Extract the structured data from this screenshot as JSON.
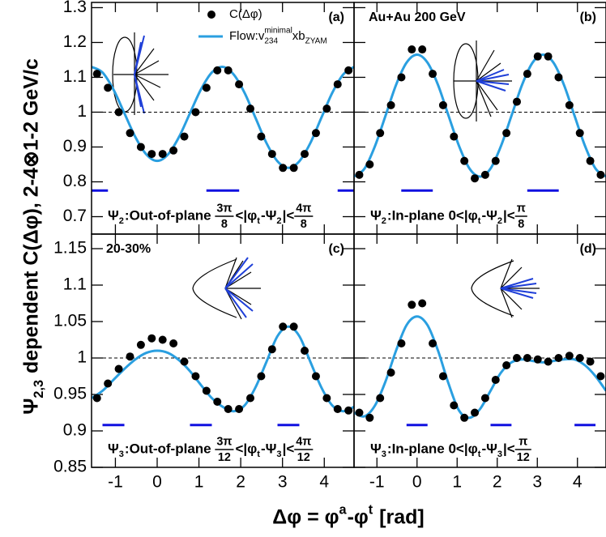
{
  "chart_data": [
    {
      "type": "line",
      "panel_label": "(a)",
      "xlim": [
        -1.5708,
        4.7124
      ],
      "ylim": [
        0.65,
        1.315
      ],
      "xticks": [
        -1,
        0,
        1,
        2,
        3,
        4
      ],
      "yticks": [
        0.7,
        0.8,
        0.9,
        1,
        1.1,
        1.2,
        1.3
      ],
      "show_x_tick_labels": false,
      "show_y_tick_labels": true,
      "ref_line": 1,
      "series": [
        {
          "name": "C(Δφ)",
          "style": "markers",
          "color": "#000000",
          "x": [
            -1.44,
            -1.18,
            -0.92,
            -0.65,
            -0.39,
            -0.13,
            0.13,
            0.39,
            0.65,
            0.92,
            1.18,
            1.44,
            1.7,
            1.96,
            2.23,
            2.49,
            2.75,
            3.01,
            3.27,
            3.53,
            3.8,
            4.06,
            4.32,
            4.58
          ],
          "values": [
            1.11,
            1.07,
            1.0,
            0.94,
            0.9,
            0.88,
            0.88,
            0.89,
            0.93,
            1.0,
            1.07,
            1.12,
            1.12,
            1.08,
            1.01,
            0.93,
            0.88,
            0.84,
            0.84,
            0.88,
            0.94,
            1.01,
            1.08,
            1.12
          ]
        },
        {
          "name": "Flow:v",
          "name_sup": "minimal",
          "name_sub": "234",
          "name_tail": "xb",
          "name_tail_sub": "ZYAM",
          "style": "curve",
          "color": "#2a9fe0",
          "x": [
            -1.571,
            -1.309,
            -1.047,
            -0.785,
            -0.524,
            -0.262,
            0,
            0.262,
            0.524,
            0.785,
            1.047,
            1.309,
            1.571,
            1.833,
            2.094,
            2.356,
            2.618,
            2.88,
            3.142,
            3.403,
            3.665,
            3.927,
            4.189,
            4.451,
            4.712
          ],
          "values": [
            1.13,
            1.114,
            1.065,
            0.997,
            0.929,
            0.879,
            0.86,
            0.879,
            0.929,
            0.997,
            1.065,
            1.114,
            1.13,
            1.108,
            1.055,
            0.983,
            0.911,
            0.859,
            0.84,
            0.859,
            0.911,
            0.983,
            1.055,
            1.108,
            1.13
          ]
        }
      ],
      "range_bars": {
        "color": "#1010e0",
        "y": 0.775,
        "segments": [
          [
            -1.571,
            -1.178
          ],
          [
            1.178,
            1.963
          ],
          [
            4.32,
            4.712
          ]
        ]
      },
      "annotation": [
        "Ψ",
        {
          "sub": "2"
        },
        ":Out-of-plane ",
        {
          "num": "3π",
          "den": "8"
        },
        "<|φ",
        {
          "sub": "t"
        },
        "-Ψ",
        {
          "sub": "2"
        },
        "|<",
        {
          "num": "4π",
          "den": "8"
        }
      ]
    },
    {
      "type": "line",
      "panel_label": "(b)",
      "corner_text": "Au+Au 200 GeV",
      "xlim": [
        -1.5708,
        4.7124
      ],
      "ylim": [
        0.65,
        1.315
      ],
      "xticks": [
        -1,
        0,
        1,
        2,
        3,
        4
      ],
      "yticks": [
        0.7,
        0.8,
        0.9,
        1,
        1.1,
        1.2,
        1.3
      ],
      "show_x_tick_labels": false,
      "show_y_tick_labels": false,
      "ref_line": 1,
      "series": [
        {
          "style": "markers",
          "color": "#000000",
          "x": [
            -1.44,
            -1.18,
            -0.92,
            -0.65,
            -0.39,
            -0.13,
            0.13,
            0.39,
            0.65,
            0.92,
            1.18,
            1.44,
            1.7,
            1.96,
            2.23,
            2.49,
            2.75,
            3.01,
            3.27,
            3.53,
            3.8,
            4.06,
            4.32,
            4.58
          ],
          "values": [
            0.82,
            0.85,
            0.94,
            1.02,
            1.1,
            1.18,
            1.18,
            1.11,
            1.02,
            0.93,
            0.86,
            0.81,
            0.82,
            0.86,
            0.94,
            1.03,
            1.11,
            1.16,
            1.16,
            1.1,
            1.02,
            0.94,
            0.86,
            0.82
          ]
        },
        {
          "style": "curve",
          "color": "#2a9fe0",
          "x": [
            -1.571,
            -1.309,
            -1.047,
            -0.785,
            -0.524,
            -0.262,
            0,
            0.262,
            0.524,
            0.785,
            1.047,
            1.309,
            1.571,
            1.833,
            2.094,
            2.356,
            2.618,
            2.88,
            3.142,
            3.403,
            3.665,
            3.927,
            4.189,
            4.451,
            4.712
          ],
          "values": [
            0.815,
            0.838,
            0.903,
            0.99,
            1.078,
            1.142,
            1.165,
            1.142,
            1.078,
            0.99,
            0.903,
            0.838,
            0.815,
            0.838,
            0.903,
            0.99,
            1.078,
            1.142,
            1.165,
            1.142,
            1.078,
            0.99,
            0.903,
            0.838,
            0.815
          ]
        }
      ],
      "range_bars": {
        "color": "#1010e0",
        "y": 0.775,
        "segments": [
          [
            -0.393,
            0.393
          ],
          [
            2.749,
            3.534
          ]
        ]
      },
      "annotation": [
        "Ψ",
        {
          "sub": "2"
        },
        ":In-plane 0<|φ",
        {
          "sub": "t"
        },
        "-Ψ",
        {
          "sub": "2"
        },
        "|<",
        {
          "num": "π",
          "den": "8"
        }
      ]
    },
    {
      "type": "line",
      "panel_label": "(c)",
      "corner_text": "20-30%",
      "xlim": [
        -1.5708,
        4.7124
      ],
      "ylim": [
        0.85,
        1.17
      ],
      "xticks": [
        -1,
        0,
        1,
        2,
        3,
        4
      ],
      "yticks": [
        0.85,
        0.9,
        0.95,
        1,
        1.05,
        1.1,
        1.15
      ],
      "show_x_tick_labels": true,
      "show_y_tick_labels": true,
      "ref_line": 1,
      "series": [
        {
          "style": "markers",
          "color": "#000000",
          "x": [
            -1.44,
            -1.18,
            -0.92,
            -0.65,
            -0.39,
            -0.13,
            0.13,
            0.39,
            0.65,
            0.92,
            1.18,
            1.44,
            1.7,
            1.96,
            2.23,
            2.49,
            2.75,
            3.01,
            3.27,
            3.53,
            3.8,
            4.06,
            4.32,
            4.58
          ],
          "values": [
            0.945,
            0.965,
            0.985,
            1.002,
            1.018,
            1.027,
            1.025,
            1.02,
            0.995,
            0.975,
            0.955,
            0.94,
            0.93,
            0.93,
            0.945,
            0.975,
            1.012,
            1.043,
            1.043,
            1.01,
            0.975,
            0.945,
            0.93,
            0.928
          ]
        },
        {
          "style": "curve",
          "color": "#2a9fe0",
          "x": [
            -1.571,
            -1.309,
            -1.047,
            -0.785,
            -0.524,
            -0.262,
            0,
            0.262,
            0.524,
            0.785,
            1.047,
            1.309,
            1.571,
            1.833,
            2.094,
            2.356,
            2.618,
            2.88,
            3.142,
            3.403,
            3.665,
            3.927,
            4.189,
            4.451,
            4.712
          ],
          "values": [
            0.945,
            0.955,
            0.97,
            0.985,
            0.998,
            1.007,
            1.01,
            1.007,
            0.997,
            0.982,
            0.963,
            0.945,
            0.933,
            0.927,
            0.935,
            0.96,
            0.995,
            1.03,
            1.043,
            1.03,
            0.995,
            0.96,
            0.935,
            0.927,
            0.933
          ]
        }
      ],
      "range_bars": {
        "color": "#1010e0",
        "y": 0.908,
        "segments": [
          [
            -1.309,
            -0.785
          ],
          [
            0.785,
            1.309
          ],
          [
            2.88,
            3.403
          ]
        ]
      },
      "annotation": [
        "Ψ",
        {
          "sub": "3"
        },
        ":Out-of-plane ",
        {
          "num": "3π",
          "den": "12"
        },
        "<|φ",
        {
          "sub": "t"
        },
        "-Ψ",
        {
          "sub": "3"
        },
        "|<",
        {
          "num": "4π",
          "den": "12"
        }
      ]
    },
    {
      "type": "line",
      "panel_label": "(d)",
      "xlim": [
        -1.5708,
        4.7124
      ],
      "ylim": [
        0.85,
        1.17
      ],
      "xticks": [
        -1,
        0,
        1,
        2,
        3,
        4
      ],
      "yticks": [
        0.85,
        0.9,
        0.95,
        1,
        1.05,
        1.1,
        1.15
      ],
      "show_x_tick_labels": true,
      "show_y_tick_labels": false,
      "ref_line": 1,
      "series": [
        {
          "style": "markers",
          "color": "#000000",
          "x": [
            -1.44,
            -1.18,
            -0.92,
            -0.65,
            -0.39,
            -0.13,
            0.13,
            0.39,
            0.65,
            0.92,
            1.18,
            1.44,
            1.7,
            1.96,
            2.23,
            2.49,
            2.75,
            3.01,
            3.27,
            3.53,
            3.8,
            4.06,
            4.32,
            4.58
          ],
          "values": [
            0.925,
            0.918,
            0.945,
            0.98,
            1.02,
            1.073,
            1.075,
            1.02,
            0.975,
            0.935,
            0.918,
            0.925,
            0.945,
            0.97,
            0.99,
            1.0,
            1.0,
            0.998,
            0.995,
            1.0,
            1.003,
            1.0,
            0.995,
            0.975
          ]
        },
        {
          "style": "curve",
          "color": "#2a9fe0",
          "x": [
            -1.571,
            -1.309,
            -1.047,
            -0.785,
            -0.524,
            -0.262,
            0,
            0.262,
            0.524,
            0.785,
            1.047,
            1.309,
            1.571,
            1.833,
            2.094,
            2.356,
            2.618,
            2.88,
            3.142,
            3.403,
            3.665,
            3.927,
            4.189,
            4.451,
            4.712
          ],
          "values": [
            0.925,
            0.92,
            0.935,
            0.968,
            1.01,
            1.045,
            1.057,
            1.045,
            1.01,
            0.965,
            0.928,
            0.918,
            0.93,
            0.955,
            0.98,
            0.994,
            0.998,
            0.996,
            0.994,
            0.996,
            0.998,
            0.998,
            0.99,
            0.975,
            0.955
          ]
        }
      ],
      "range_bars": {
        "color": "#1010e0",
        "y": 0.908,
        "segments": [
          [
            -0.262,
            0.262
          ],
          [
            1.833,
            2.356
          ],
          [
            3.927,
            4.451
          ]
        ]
      },
      "annotation": [
        "Ψ",
        {
          "sub": "3"
        },
        ":In-plane 0<|φ",
        {
          "sub": "t"
        },
        "-Ψ",
        {
          "sub": "3"
        },
        "|<",
        {
          "num": "π",
          "den": "12"
        }
      ]
    }
  ],
  "x_label": [
    "Δφ = φ",
    {
      "sup": "a"
    },
    "-φ",
    {
      "sup": "t"
    },
    " [rad]"
  ],
  "y_label": [
    "Ψ",
    {
      "sub": "2,3"
    },
    " dependent C(Δφ), 2-4⊗1-2 GeV/c"
  ]
}
